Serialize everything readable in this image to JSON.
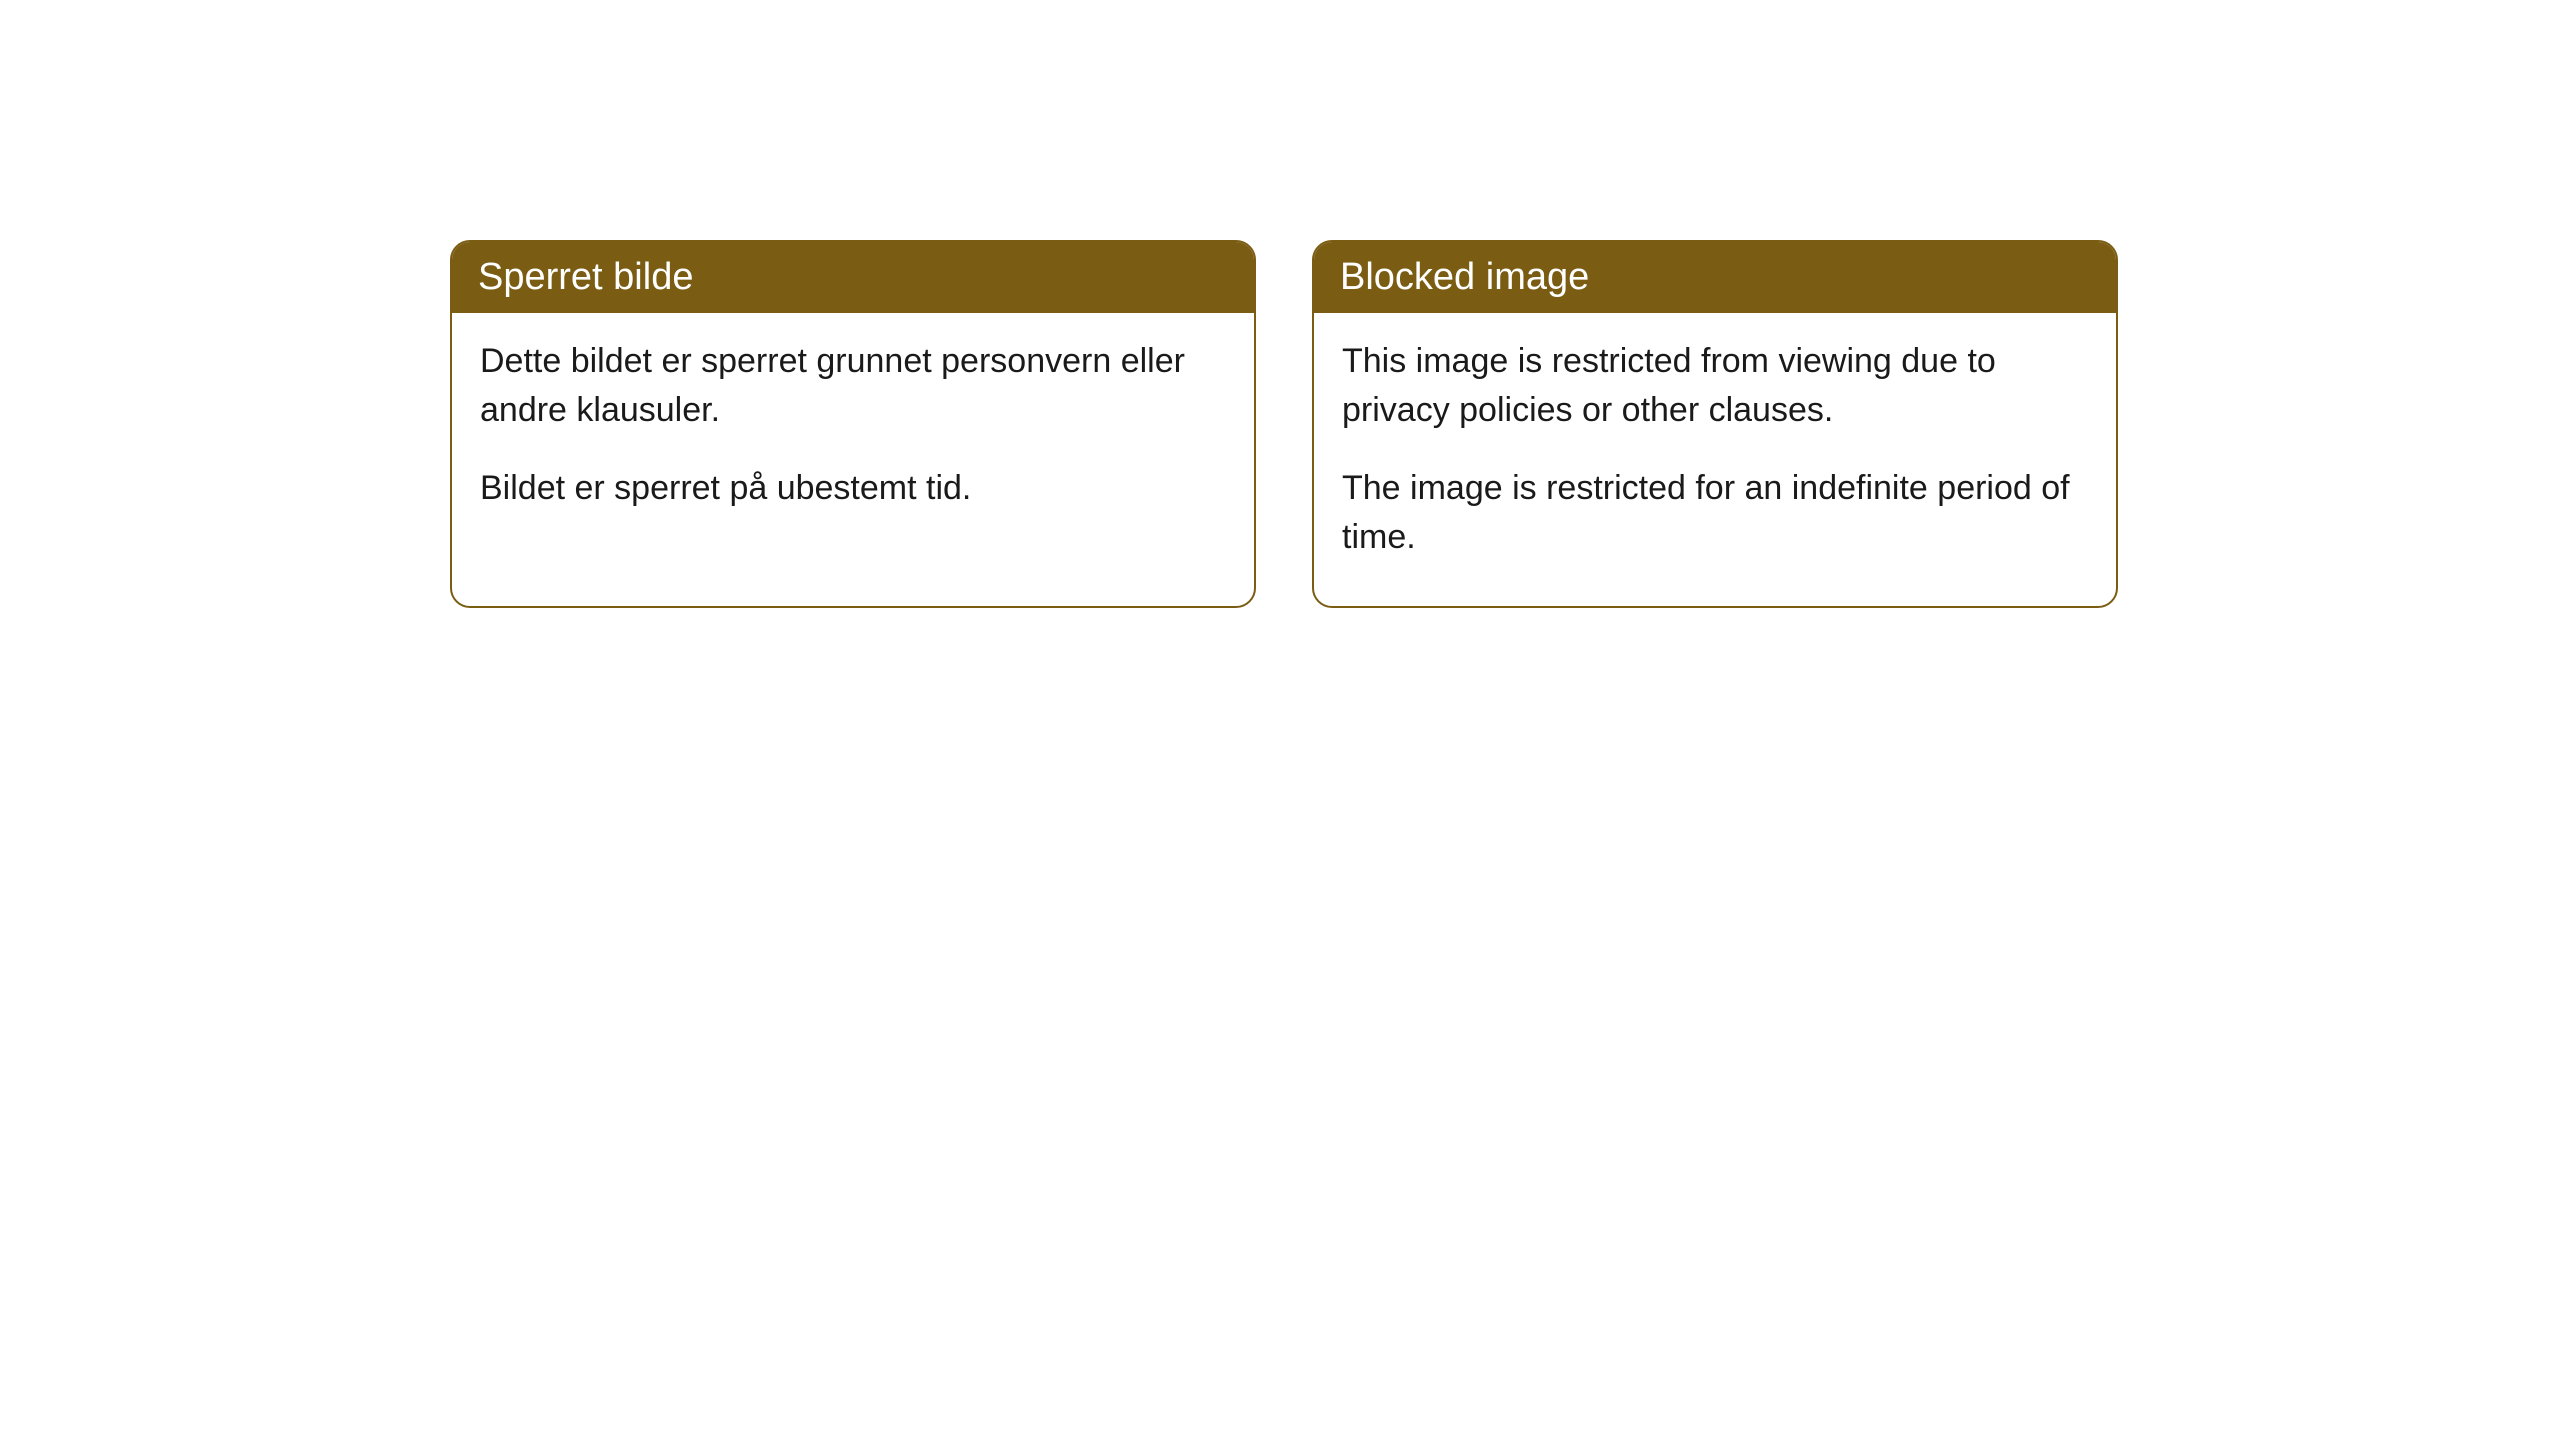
{
  "cards": [
    {
      "title": "Sperret bilde",
      "paragraph1": "Dette bildet er sperret grunnet personvern eller andre klausuler.",
      "paragraph2": "Bildet er sperret på ubestemt tid."
    },
    {
      "title": "Blocked image",
      "paragraph1": "This image is restricted from viewing due to privacy policies or other clauses.",
      "paragraph2": "The image is restricted for an indefinite period of time."
    }
  ],
  "style": {
    "header_bg": "#7a5c13",
    "header_text_color": "#ffffff",
    "border_color": "#7a5c13",
    "body_text_color": "#1a1a1a",
    "background_color": "#ffffff",
    "border_radius": 20,
    "title_fontsize": 38,
    "body_fontsize": 34
  }
}
